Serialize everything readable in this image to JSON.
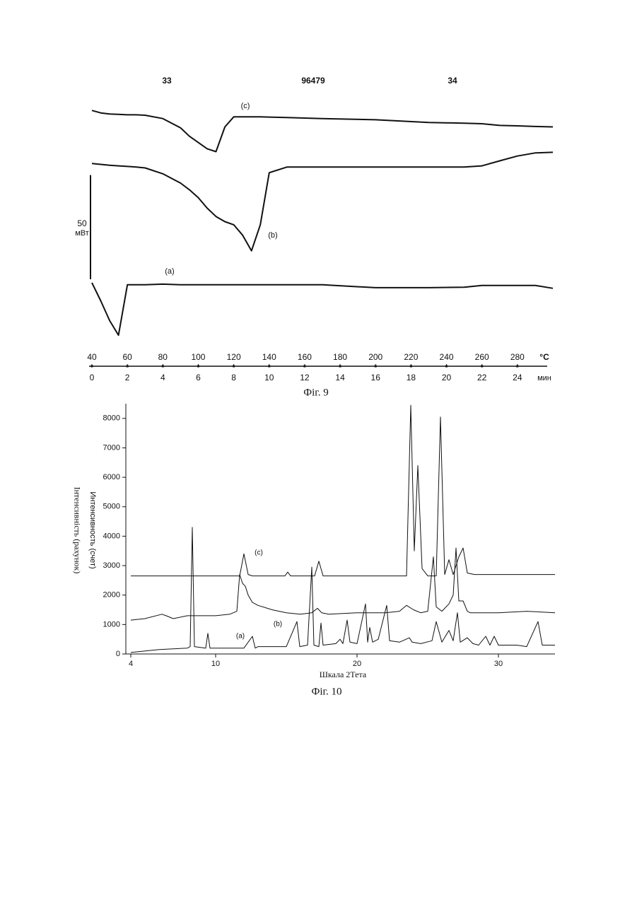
{
  "header": {
    "left_page": "33",
    "patent_number": "96479",
    "right_page": "34"
  },
  "chart_data": [
    {
      "type": "line",
      "caption": "Фіг. 9",
      "x_label": "°C",
      "x2_label": "мин",
      "scale_bar_value": 50,
      "scale_bar_unit": "мВт",
      "x": [
        40,
        45,
        50,
        55,
        60,
        65,
        70,
        80,
        90,
        95,
        100,
        105,
        110,
        115,
        120,
        125,
        130,
        135,
        140,
        150,
        170,
        200,
        230,
        250,
        260,
        270,
        280,
        290,
        300
      ],
      "xlim": [
        40,
        300
      ],
      "xticks": [
        40,
        60,
        80,
        100,
        120,
        140,
        160,
        180,
        200,
        220,
        240,
        260,
        280
      ],
      "x2lim": [
        0,
        26
      ],
      "x2ticks": [
        0,
        2,
        4,
        6,
        8,
        10,
        12,
        14,
        16,
        18,
        20,
        22,
        24
      ],
      "ylim": [
        0,
        112
      ],
      "series": [
        {
          "name": "(a)",
          "color": "#111111",
          "values": [
            27.2,
            18.5,
            9,
            2,
            26.2,
            26.2,
            26.2,
            26.5,
            26.2,
            26.2,
            26.2,
            26.2,
            26.2,
            26.2,
            26.2,
            26.2,
            26.2,
            26.2,
            26.2,
            26.2,
            26.2,
            24.8,
            24.8,
            25,
            25.9,
            25.9,
            25.9,
            25.9,
            24.5
          ]
        },
        {
          "name": "(b)",
          "color": "#111111",
          "values": [
            84.4,
            84,
            83.6,
            83.3,
            83,
            82.7,
            82.3,
            79.5,
            75,
            71.8,
            68,
            63,
            59,
            56.5,
            55,
            50,
            42.5,
            55,
            80,
            82.7,
            82.7,
            82.7,
            82.7,
            82.7,
            83.3,
            85.7,
            88,
            89.5,
            89.8
          ]
        },
        {
          "name": "(c)",
          "color": "#111111",
          "values": [
            109.9,
            108.7,
            108.2,
            108,
            107.8,
            107.8,
            107.6,
            106,
            101.5,
            97.5,
            94.5,
            91.5,
            90.1,
            102,
            106.8,
            106.8,
            106.8,
            106.8,
            106.7,
            106.5,
            106,
            105.4,
            104.1,
            103.8,
            103.5,
            102.7,
            102.5,
            102.2,
            102
          ]
        }
      ]
    },
    {
      "type": "line",
      "caption": "Фіг. 10",
      "x_label": "Шкала 2Тета",
      "y_labels": [
        "Интенсивность (счет)",
        "Інтенсивність (рахунок)"
      ],
      "xlim": [
        4,
        34
      ],
      "xticks": [
        4,
        10,
        20,
        30
      ],
      "ylim": [
        0,
        8500
      ],
      "yticks": [
        0,
        1000,
        2000,
        3000,
        4000,
        5000,
        6000,
        7000,
        8000
      ],
      "series": [
        {
          "name": "(a)",
          "color": "#111111",
          "x": [
            4,
            6,
            8,
            8.2,
            8.35,
            8.5,
            9.3,
            9.45,
            9.6,
            10,
            12,
            12.6,
            12.8,
            13,
            15,
            15.75,
            15.95,
            16.5,
            16.8,
            16.95,
            17.3,
            17.45,
            17.6,
            18.5,
            18.8,
            19.0,
            19.3,
            19.5,
            20.0,
            20.6,
            20.75,
            20.9,
            21.1,
            21.5,
            22.1,
            22.3,
            23,
            23.7,
            23.9,
            24.5,
            25.3,
            25.6,
            26,
            26.5,
            26.8,
            27.1,
            27.3,
            27.8,
            28.2,
            28.6,
            29.1,
            29.4,
            29.7,
            30,
            31.3,
            32,
            32.8,
            33.1,
            34
          ],
          "values": [
            50,
            150,
            200,
            250,
            4300,
            250,
            200,
            700,
            200,
            200,
            200,
            600,
            200,
            250,
            250,
            1100,
            250,
            300,
            2950,
            300,
            250,
            1050,
            300,
            350,
            500,
            350,
            1150,
            400,
            350,
            1700,
            400,
            900,
            400,
            500,
            1650,
            450,
            400,
            550,
            400,
            350,
            450,
            1100,
            400,
            800,
            450,
            1400,
            400,
            550,
            350,
            300,
            600,
            300,
            600,
            300,
            300,
            250,
            1100,
            300,
            300
          ]
        },
        {
          "name": "(b)",
          "color": "#111111",
          "x": [
            4,
            5,
            6.2,
            6.5,
            7,
            8,
            8.3,
            8.5,
            9,
            10,
            11,
            11.5,
            11.7,
            11.9,
            12.1,
            12.3,
            12.6,
            13,
            14,
            15,
            16,
            16.8,
            17.2,
            17.5,
            18,
            20,
            22,
            23,
            23.5,
            24,
            24.5,
            25,
            25.4,
            25.6,
            26,
            26.5,
            26.8,
            27.0,
            27.2,
            27.5,
            27.8,
            28,
            30,
            32,
            34
          ],
          "values": [
            1150,
            1200,
            1350,
            1300,
            1200,
            1300,
            1300,
            1300,
            1300,
            1300,
            1350,
            1450,
            2700,
            2400,
            2300,
            2000,
            1750,
            1650,
            1500,
            1400,
            1350,
            1400,
            1550,
            1400,
            1350,
            1400,
            1400,
            1450,
            1650,
            1500,
            1400,
            1450,
            3300,
            1600,
            1450,
            1700,
            2000,
            3600,
            1800,
            1800,
            1450,
            1400,
            1400,
            1450,
            1400
          ]
        },
        {
          "name": "(c)",
          "color": "#111111",
          "x": [
            4,
            11.7,
            12.0,
            12.3,
            12.6,
            14.9,
            15.1,
            15.3,
            17.0,
            17.3,
            17.6,
            23.5,
            23.8,
            24.05,
            24.3,
            24.6,
            25.0,
            25.6,
            25.9,
            26.2,
            26.5,
            26.8,
            27.2,
            27.5,
            27.8,
            28.3,
            34
          ],
          "values": [
            2650,
            2650,
            3400,
            2700,
            2650,
            2650,
            2780,
            2650,
            2650,
            3150,
            2650,
            2650,
            8450,
            3500,
            6400,
            2900,
            2650,
            2650,
            8050,
            2700,
            3200,
            2700,
            3300,
            3600,
            2750,
            2700,
            2700
          ]
        }
      ]
    }
  ]
}
